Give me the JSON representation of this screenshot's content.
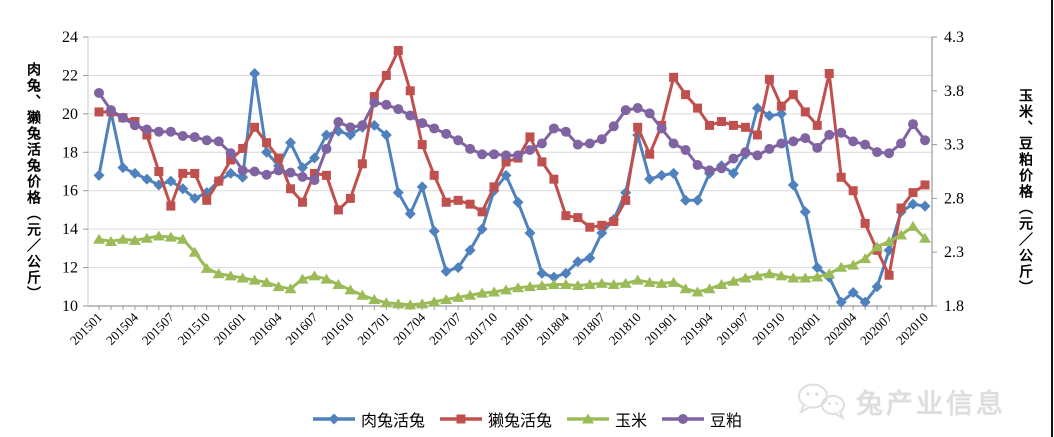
{
  "chart_data": {
    "type": "line",
    "n_points": 70,
    "x_range_note": "monthly 201501-202010",
    "x_tick_labels": [
      "201501",
      "201504",
      "201507",
      "201510",
      "201601",
      "201604",
      "201607",
      "201610",
      "201701",
      "201704",
      "201707",
      "201710",
      "201801",
      "201804",
      "201807",
      "201810",
      "201901",
      "201904",
      "201907",
      "201910",
      "202001",
      "202004",
      "202007",
      "202010"
    ],
    "left_axis": {
      "label": "肉兔、獭兔活兔价格（元／公斤）",
      "ticks": [
        "10",
        "12",
        "14",
        "16",
        "18",
        "20",
        "22",
        "24"
      ],
      "min": 10,
      "max": 24
    },
    "right_axis": {
      "label": "玉米、豆粕价格（元／公斤）",
      "ticks": [
        "1.8",
        "2.3",
        "2.8",
        "3.3",
        "3.8",
        "4.3"
      ],
      "min": 1.8,
      "max": 4.3
    },
    "grid": true,
    "legend_position": "bottom",
    "series": [
      {
        "id": "meat-rabbit",
        "name": "肉兔活兔",
        "axis": "left",
        "color": "#4F81BD",
        "marker": "diamond",
        "values": [
          16.8,
          20.1,
          17.2,
          16.9,
          16.6,
          16.3,
          16.5,
          16.1,
          15.6,
          15.9,
          16.5,
          16.9,
          16.7,
          22.1,
          18.0,
          17.3,
          18.5,
          17.2,
          17.7,
          18.9,
          19.1,
          18.9,
          19.3,
          19.4,
          18.9,
          15.9,
          14.8,
          16.2,
          13.9,
          11.8,
          12.0,
          12.9,
          14.0,
          16.0,
          16.8,
          15.4,
          13.8,
          11.7,
          11.5,
          11.7,
          12.3,
          12.5,
          13.8,
          14.5,
          15.9,
          18.9,
          16.6,
          16.8,
          16.9,
          15.5,
          15.5,
          16.9,
          17.3,
          16.9,
          17.9,
          20.3,
          19.9,
          20.0,
          16.3,
          14.9,
          12.0,
          11.5,
          10.2,
          10.7,
          10.2,
          11.0,
          12.9,
          14.9,
          15.3,
          15.2
        ]
      },
      {
        "id": "rex-rabbit",
        "name": "獭兔活兔",
        "axis": "left",
        "color": "#C0504D",
        "marker": "square",
        "values": [
          20.1,
          20.1,
          19.8,
          19.6,
          18.9,
          17.0,
          15.2,
          16.9,
          16.9,
          15.5,
          16.5,
          17.6,
          18.2,
          19.3,
          18.5,
          17.7,
          16.1,
          15.4,
          16.9,
          16.8,
          15.0,
          15.6,
          17.4,
          20.9,
          22.0,
          23.3,
          21.2,
          18.4,
          16.8,
          15.4,
          15.5,
          15.3,
          14.9,
          16.2,
          17.5,
          17.7,
          18.8,
          17.5,
          16.6,
          14.7,
          14.6,
          14.1,
          14.2,
          14.4,
          15.5,
          19.3,
          17.9,
          19.4,
          21.9,
          21.0,
          20.3,
          19.4,
          19.6,
          19.4,
          19.3,
          18.9,
          21.8,
          20.4,
          21.0,
          20.1,
          19.4,
          22.1,
          16.7,
          16.0,
          14.3,
          12.9,
          11.6,
          15.1,
          15.9,
          16.3
        ]
      },
      {
        "id": "corn",
        "name": "玉米",
        "axis": "right",
        "color": "#9BBB59",
        "marker": "triangle",
        "values": [
          2.42,
          2.4,
          2.42,
          2.41,
          2.43,
          2.45,
          2.44,
          2.42,
          2.3,
          2.15,
          2.1,
          2.08,
          2.06,
          2.04,
          2.02,
          1.98,
          1.96,
          2.05,
          2.08,
          2.05,
          2.0,
          1.95,
          1.9,
          1.86,
          1.83,
          1.82,
          1.81,
          1.82,
          1.84,
          1.86,
          1.88,
          1.9,
          1.92,
          1.93,
          1.95,
          1.97,
          1.98,
          1.99,
          2.0,
          2.0,
          1.99,
          2.0,
          2.01,
          2.0,
          2.01,
          2.04,
          2.02,
          2.01,
          2.02,
          1.96,
          1.93,
          1.96,
          2.0,
          2.03,
          2.06,
          2.08,
          2.1,
          2.08,
          2.06,
          2.06,
          2.07,
          2.1,
          2.16,
          2.18,
          2.24,
          2.35,
          2.4,
          2.46,
          2.54,
          2.43
        ]
      },
      {
        "id": "soybean-meal",
        "name": "豆粕",
        "axis": "right",
        "color": "#8064A2",
        "marker": "circle",
        "values": [
          3.78,
          3.62,
          3.55,
          3.48,
          3.44,
          3.42,
          3.42,
          3.38,
          3.37,
          3.34,
          3.33,
          3.22,
          3.06,
          3.05,
          3.02,
          3.06,
          3.04,
          3.0,
          2.97,
          3.26,
          3.51,
          3.46,
          3.48,
          3.69,
          3.67,
          3.63,
          3.57,
          3.5,
          3.45,
          3.4,
          3.34,
          3.26,
          3.21,
          3.21,
          3.2,
          3.2,
          3.25,
          3.31,
          3.45,
          3.42,
          3.3,
          3.31,
          3.35,
          3.47,
          3.62,
          3.64,
          3.59,
          3.45,
          3.31,
          3.25,
          3.11,
          3.06,
          3.08,
          3.17,
          3.23,
          3.2,
          3.26,
          3.31,
          3.33,
          3.36,
          3.27,
          3.39,
          3.41,
          3.33,
          3.3,
          3.23,
          3.22,
          3.31,
          3.49,
          3.34
        ]
      }
    ]
  },
  "watermark": {
    "text": "兔产业信息",
    "icon": "wechat-icon"
  }
}
